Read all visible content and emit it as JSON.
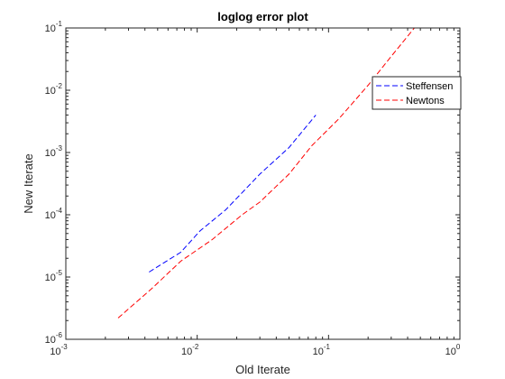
{
  "chart_data": {
    "type": "line",
    "title": "loglog error plot",
    "xlabel": "Old Iterate",
    "ylabel": "New Iterate",
    "xscale": "log",
    "yscale": "log",
    "xlim": [
      0.001,
      1
    ],
    "ylim": [
      1e-06,
      0.1
    ],
    "grid": false,
    "legend_position": "top-right",
    "x_ticks": [
      {
        "base": "10",
        "exp": "-3",
        "value": 0.001
      },
      {
        "base": "10",
        "exp": "-2",
        "value": 0.01
      },
      {
        "base": "10",
        "exp": "-1",
        "value": 0.1
      },
      {
        "base": "10",
        "exp": "0",
        "value": 1
      }
    ],
    "y_ticks": [
      {
        "base": "10",
        "exp": "-6",
        "value": 1e-06
      },
      {
        "base": "10",
        "exp": "-5",
        "value": 1e-05
      },
      {
        "base": "10",
        "exp": "-4",
        "value": 0.0001
      },
      {
        "base": "10",
        "exp": "-3",
        "value": 0.001
      },
      {
        "base": "10",
        "exp": "-2",
        "value": 0.01
      },
      {
        "base": "10",
        "exp": "-1",
        "value": 0.1
      }
    ],
    "series": [
      {
        "name": "Steffensen",
        "color": "#0000ff",
        "line_style": "dashed",
        "x": [
          0.0043,
          0.0075,
          0.0105,
          0.0165,
          0.03,
          0.05,
          0.08
        ],
        "y": [
          1.2e-05,
          2.5e-05,
          5.5e-05,
          0.00012,
          0.00045,
          0.0012,
          0.004
        ]
      },
      {
        "name": "Newtons",
        "color": "#ff0000",
        "line_style": "dashed",
        "x": [
          0.0025,
          0.0045,
          0.0075,
          0.013,
          0.022,
          0.03,
          0.05,
          0.075,
          0.12,
          0.2,
          0.3,
          0.45
        ],
        "y": [
          2.2e-06,
          6.5e-06,
          1.8e-05,
          4e-05,
          0.0001,
          0.00016,
          0.00045,
          0.0013,
          0.0035,
          0.012,
          0.035,
          0.1
        ]
      }
    ]
  }
}
